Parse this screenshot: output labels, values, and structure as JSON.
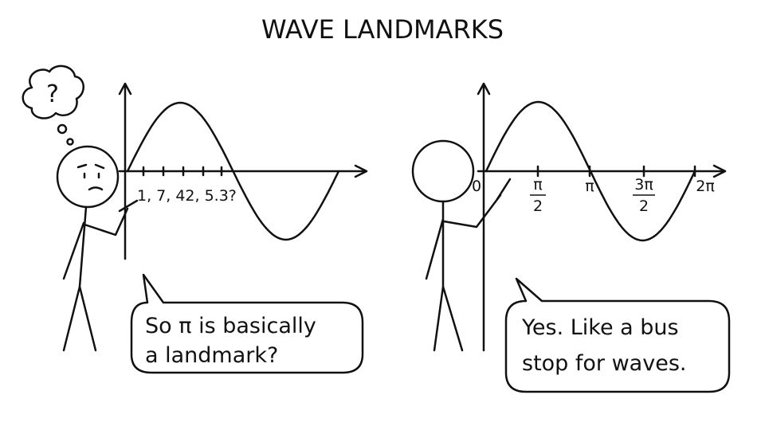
{
  "header": {
    "title": "WAVE LANDMARKS"
  },
  "left_panel": {
    "thought": "?",
    "axis_guess": "1, 7, 42, 5.3?",
    "speech": [
      "So π is basically",
      "a landmark?"
    ]
  },
  "right_panel": {
    "axis_labels": {
      "zero": "0",
      "half_pi": {
        "numerator": "π",
        "denominator": "2"
      },
      "pi": "π",
      "three_half_pi": {
        "numerator": "3π",
        "denominator": "2"
      },
      "two_pi": "2π"
    },
    "speech": [
      "Yes. Like a bus",
      "stop for waves."
    ]
  }
}
